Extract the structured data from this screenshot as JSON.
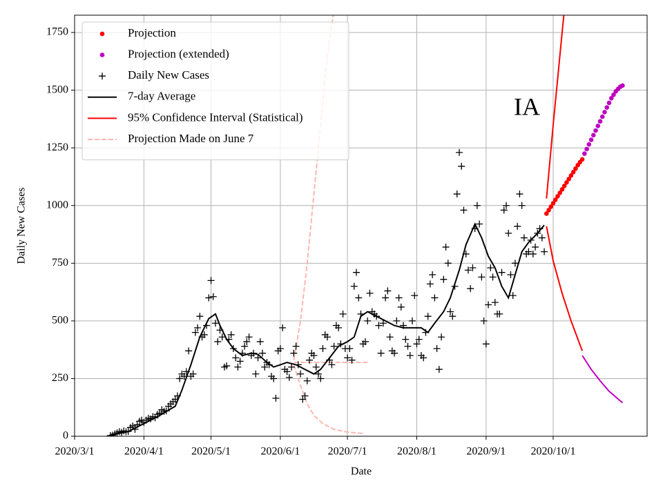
{
  "chart_data": {
    "type": "line",
    "annotation": "IA",
    "xlabel": "Date",
    "ylabel": "Daily New Cases",
    "xlim": [
      "2020-03-01",
      "2020-11-12"
    ],
    "ylim": [
      0,
      1825
    ],
    "xticks": [
      {
        "value": "2020-03-01",
        "label": "2020/3/1"
      },
      {
        "value": "2020-04-01",
        "label": "2020/4/1"
      },
      {
        "value": "2020-05-01",
        "label": "2020/5/1"
      },
      {
        "value": "2020-06-01",
        "label": "2020/6/1"
      },
      {
        "value": "2020-07-01",
        "label": "2020/7/1"
      },
      {
        "value": "2020-08-01",
        "label": "2020/8/1"
      },
      {
        "value": "2020-09-01",
        "label": "2020/9/1"
      },
      {
        "value": "2020-10-01",
        "label": "2020/10/1"
      }
    ],
    "yticks": [
      0,
      250,
      500,
      750,
      1000,
      1250,
      1500,
      1750
    ],
    "grid": true,
    "legend": "upper left",
    "series": [
      {
        "name": "Projection",
        "color": "#ff0000",
        "style": "dot",
        "x": [
          "2020-09-28",
          "2020-09-29",
          "2020-09-30",
          "2020-10-01",
          "2020-10-02",
          "2020-10-03",
          "2020-10-04",
          "2020-10-05",
          "2020-10-06",
          "2020-10-07",
          "2020-10-08",
          "2020-10-09",
          "2020-10-10",
          "2020-10-11",
          "2020-10-12",
          "2020-10-13",
          "2020-10-14"
        ],
        "values": [
          965,
          980,
          995,
          1010,
          1025,
          1040,
          1055,
          1070,
          1085,
          1100,
          1115,
          1130,
          1145,
          1160,
          1175,
          1188,
          1200
        ]
      },
      {
        "name": "Projection (extended)",
        "color": "#bf00bf",
        "style": "dot",
        "x": [
          "2020-10-15",
          "2020-10-16",
          "2020-10-17",
          "2020-10-18",
          "2020-10-19",
          "2020-10-20",
          "2020-10-21",
          "2020-10-22",
          "2020-10-23",
          "2020-10-24",
          "2020-10-25",
          "2020-10-26",
          "2020-10-27",
          "2020-10-28",
          "2020-10-29",
          "2020-10-30",
          "2020-10-31",
          "2020-11-01"
        ],
        "values": [
          1225,
          1245,
          1265,
          1285,
          1305,
          1325,
          1345,
          1365,
          1385,
          1405,
          1425,
          1445,
          1465,
          1480,
          1495,
          1505,
          1515,
          1520
        ]
      },
      {
        "name": "Daily New Cases",
        "color": "#000000",
        "style": "plus",
        "x": [
          "2020-03-17",
          "2020-03-18",
          "2020-03-19",
          "2020-03-20",
          "2020-03-21",
          "2020-03-22",
          "2020-03-23",
          "2020-03-24",
          "2020-03-25",
          "2020-03-26",
          "2020-03-27",
          "2020-03-28",
          "2020-03-29",
          "2020-03-30",
          "2020-03-31",
          "2020-04-01",
          "2020-04-02",
          "2020-04-03",
          "2020-04-04",
          "2020-04-05",
          "2020-04-06",
          "2020-04-07",
          "2020-04-08",
          "2020-04-09",
          "2020-04-10",
          "2020-04-11",
          "2020-04-12",
          "2020-04-13",
          "2020-04-14",
          "2020-04-15",
          "2020-04-16",
          "2020-04-17",
          "2020-04-18",
          "2020-04-19",
          "2020-04-20",
          "2020-04-21",
          "2020-04-22",
          "2020-04-23",
          "2020-04-24",
          "2020-04-25",
          "2020-04-26",
          "2020-04-27",
          "2020-04-28",
          "2020-04-29",
          "2020-04-30",
          "2020-05-01",
          "2020-05-02",
          "2020-05-03",
          "2020-05-04",
          "2020-05-05",
          "2020-05-06",
          "2020-05-07",
          "2020-05-08",
          "2020-05-09",
          "2020-05-10",
          "2020-05-11",
          "2020-05-12",
          "2020-05-13",
          "2020-05-14",
          "2020-05-15",
          "2020-05-16",
          "2020-05-17",
          "2020-05-18",
          "2020-05-19",
          "2020-05-20",
          "2020-05-21",
          "2020-05-22",
          "2020-05-23",
          "2020-05-24",
          "2020-05-25",
          "2020-05-26",
          "2020-05-27",
          "2020-05-28",
          "2020-05-29",
          "2020-05-30",
          "2020-05-31",
          "2020-06-01",
          "2020-06-02",
          "2020-06-03",
          "2020-06-04",
          "2020-06-05",
          "2020-06-06",
          "2020-06-07",
          "2020-06-08",
          "2020-06-09",
          "2020-06-10",
          "2020-06-11",
          "2020-06-12",
          "2020-06-13",
          "2020-06-14",
          "2020-06-15",
          "2020-06-16",
          "2020-06-17",
          "2020-06-18",
          "2020-06-19",
          "2020-06-20",
          "2020-06-21",
          "2020-06-22",
          "2020-06-23",
          "2020-06-24",
          "2020-06-25",
          "2020-06-26",
          "2020-06-27",
          "2020-06-28",
          "2020-06-29",
          "2020-06-30",
          "2020-07-01",
          "2020-07-02",
          "2020-07-03",
          "2020-07-04",
          "2020-07-05",
          "2020-07-06",
          "2020-07-07",
          "2020-07-08",
          "2020-07-09",
          "2020-07-10",
          "2020-07-11",
          "2020-07-12",
          "2020-07-13",
          "2020-07-14",
          "2020-07-15",
          "2020-07-16",
          "2020-07-17",
          "2020-07-18",
          "2020-07-19",
          "2020-07-20",
          "2020-07-21",
          "2020-07-22",
          "2020-07-23",
          "2020-07-24",
          "2020-07-25",
          "2020-07-26",
          "2020-07-27",
          "2020-07-28",
          "2020-07-29",
          "2020-07-30",
          "2020-07-31",
          "2020-08-01",
          "2020-08-02",
          "2020-08-03",
          "2020-08-04",
          "2020-08-05",
          "2020-08-06",
          "2020-08-07",
          "2020-08-08",
          "2020-08-09",
          "2020-08-10",
          "2020-08-11",
          "2020-08-12",
          "2020-08-13",
          "2020-08-14",
          "2020-08-15",
          "2020-08-16",
          "2020-08-17",
          "2020-08-18",
          "2020-08-19",
          "2020-08-20",
          "2020-08-21",
          "2020-08-22",
          "2020-08-23",
          "2020-08-24",
          "2020-08-25",
          "2020-08-26",
          "2020-08-27",
          "2020-08-28",
          "2020-08-29",
          "2020-08-30",
          "2020-08-31",
          "2020-09-01",
          "2020-09-02",
          "2020-09-03",
          "2020-09-04",
          "2020-09-05",
          "2020-09-06",
          "2020-09-07",
          "2020-09-08",
          "2020-09-09",
          "2020-09-10",
          "2020-09-11",
          "2020-09-12",
          "2020-09-13",
          "2020-09-14",
          "2020-09-15",
          "2020-09-16",
          "2020-09-17",
          "2020-09-18",
          "2020-09-19",
          "2020-09-20",
          "2020-09-21",
          "2020-09-22",
          "2020-09-23",
          "2020-09-24",
          "2020-09-25",
          "2020-09-26",
          "2020-09-27"
        ],
        "values": [
          3,
          5,
          10,
          15,
          20,
          17,
          23,
          20,
          21,
          38,
          45,
          30,
          50,
          65,
          70,
          60,
          70,
          78,
          75,
          85,
          80,
          95,
          100,
          115,
          108,
          110,
          130,
          140,
          150,
          160,
          175,
          250,
          270,
          260,
          280,
          370,
          260,
          270,
          450,
          470,
          520,
          430,
          440,
          480,
          600,
          675,
          605,
          490,
          410,
          460,
          430,
          300,
          305,
          420,
          440,
          380,
          340,
          300,
          325,
          360,
          390,
          410,
          430,
          350,
          360,
          270,
          340,
          410,
          360,
          300,
          320,
          310,
          260,
          250,
          165,
          370,
          380,
          470,
          290,
          280,
          255,
          300,
          360,
          390,
          310,
          270,
          160,
          175,
          240,
          330,
          360,
          350,
          300,
          270,
          250,
          380,
          440,
          430,
          330,
          310,
          390,
          480,
          470,
          400,
          530,
          380,
          340,
          380,
          330,
          650,
          710,
          600,
          530,
          400,
          410,
          500,
          620,
          540,
          530,
          520,
          480,
          360,
          490,
          600,
          630,
          430,
          370,
          360,
          500,
          600,
          560,
          480,
          420,
          390,
          350,
          500,
          610,
          400,
          420,
          350,
          340,
          450,
          520,
          660,
          700,
          600,
          380,
          290,
          430,
          680,
          820,
          750,
          540,
          520,
          650,
          1050,
          1230,
          1170,
          980,
          790,
          720,
          640,
          730,
          900,
          1000,
          920,
          690,
          500,
          400,
          570,
          730,
          690,
          580,
          530,
          530,
          710,
          980,
          1000,
          880,
          700,
          610,
          750,
          910,
          1050,
          1000,
          860,
          790,
          800,
          850,
          790,
          820,
          880,
          900,
          860,
          800
        ]
      },
      {
        "name": "7-day Average",
        "color": "#000000",
        "style": "line",
        "x": [
          "2020-03-17",
          "2020-03-25",
          "2020-04-01",
          "2020-04-08",
          "2020-04-15",
          "2020-04-18",
          "2020-04-22",
          "2020-04-26",
          "2020-04-30",
          "2020-05-03",
          "2020-05-05",
          "2020-05-08",
          "2020-05-11",
          "2020-05-15",
          "2020-05-19",
          "2020-05-22",
          "2020-05-26",
          "2020-05-29",
          "2020-06-01",
          "2020-06-04",
          "2020-06-08",
          "2020-06-12",
          "2020-06-16",
          "2020-06-19",
          "2020-06-23",
          "2020-06-27",
          "2020-07-01",
          "2020-07-04",
          "2020-07-07",
          "2020-07-10",
          "2020-07-14",
          "2020-07-18",
          "2020-07-22",
          "2020-07-26",
          "2020-07-30",
          "2020-08-03",
          "2020-08-06",
          "2020-08-09",
          "2020-08-13",
          "2020-08-16",
          "2020-08-20",
          "2020-08-23",
          "2020-08-27",
          "2020-08-30",
          "2020-09-02",
          "2020-09-05",
          "2020-09-08",
          "2020-09-11",
          "2020-09-14",
          "2020-09-17",
          "2020-09-20",
          "2020-09-24",
          "2020-09-27"
        ],
        "values": [
          5,
          20,
          55,
          90,
          130,
          200,
          310,
          430,
          510,
          530,
          480,
          420,
          380,
          350,
          360,
          355,
          320,
          300,
          310,
          320,
          310,
          290,
          270,
          290,
          340,
          390,
          410,
          430,
          520,
          540,
          520,
          500,
          480,
          470,
          470,
          470,
          450,
          490,
          540,
          600,
          720,
          830,
          920,
          860,
          780,
          730,
          650,
          600,
          700,
          800,
          840,
          880,
          915
        ]
      },
      {
        "name": "95% Confidence Interval (Statistical)",
        "color": "#ff0000",
        "style": "line",
        "lines": [
          {
            "color": "#ff0000",
            "x": [
              "2020-09-28",
              "2020-10-01",
              "2020-10-04",
              "2020-10-06"
            ],
            "values": [
              1030,
              1350,
              1650,
              1850
            ]
          },
          {
            "color": "#ff0000",
            "x": [
              "2020-09-28",
              "2020-10-01",
              "2020-10-05",
              "2020-10-09",
              "2020-10-14"
            ],
            "values": [
              910,
              760,
              620,
              500,
              370
            ]
          },
          {
            "color": "#bf00bf",
            "x": [
              "2020-10-14",
              "2020-10-18",
              "2020-10-22",
              "2020-10-26",
              "2020-11-01"
            ],
            "values": [
              350,
              290,
              240,
              195,
              145
            ]
          }
        ]
      },
      {
        "name": "Projection Made on June 7",
        "color": "#ffb6b0",
        "style": "dashed",
        "lines": [
          {
            "color": "#ffb6b0",
            "x": [
              "2020-06-07",
              "2020-07-10"
            ],
            "values": [
              320,
              320
            ]
          },
          {
            "color": "#ffb6b0",
            "x": [
              "2020-06-07",
              "2020-06-10",
              "2020-06-13",
              "2020-06-16",
              "2020-06-19",
              "2020-06-22",
              "2020-06-25"
            ],
            "values": [
              330,
              500,
              750,
              1050,
              1350,
              1650,
              1850
            ]
          },
          {
            "color": "#ffb6b0",
            "x": [
              "2020-06-07",
              "2020-06-10",
              "2020-06-13",
              "2020-06-16",
              "2020-06-20",
              "2020-06-25",
              "2020-07-01",
              "2020-07-08"
            ],
            "values": [
              310,
              220,
              140,
              90,
              55,
              30,
              18,
              12
            ]
          }
        ]
      }
    ]
  }
}
